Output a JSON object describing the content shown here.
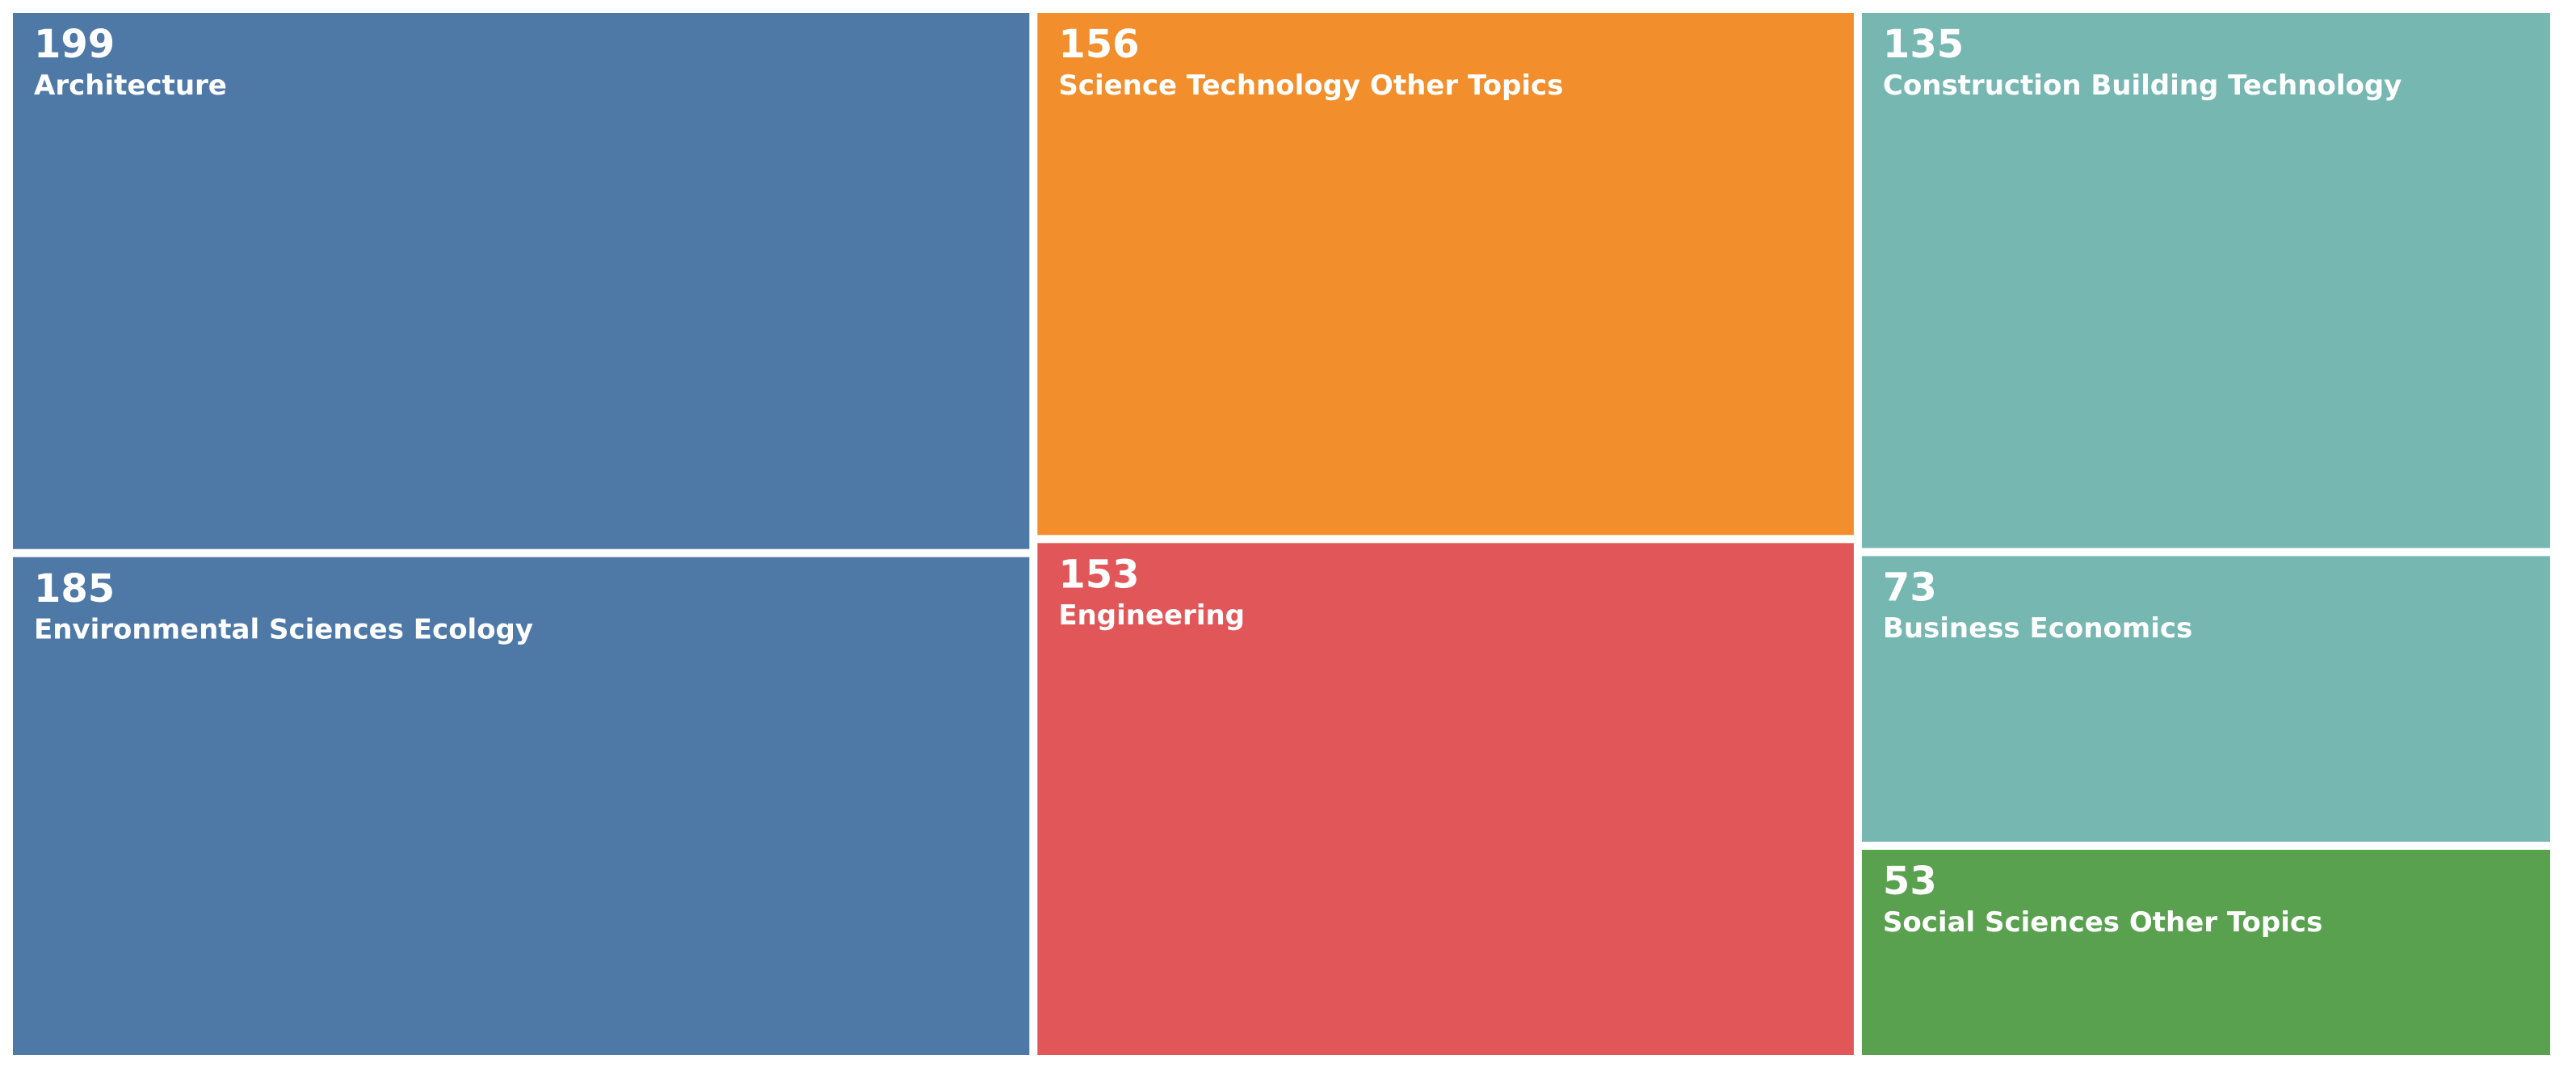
{
  "chart_data": {
    "type": "treemap",
    "categories": [
      "Architecture",
      "Environmental Sciences Ecology",
      "Science Technology Other Topics",
      "Engineering",
      "Construction Building Technology",
      "Business Economics",
      "Social Sciences Other Topics"
    ],
    "values": [
      199,
      185,
      156,
      153,
      135,
      73,
      53
    ],
    "colors": [
      "#4e79a7",
      "#4e79a7",
      "#f28e2b",
      "#e15759",
      "#76b7b2",
      "#76b7b2",
      "#59a14f"
    ]
  }
}
